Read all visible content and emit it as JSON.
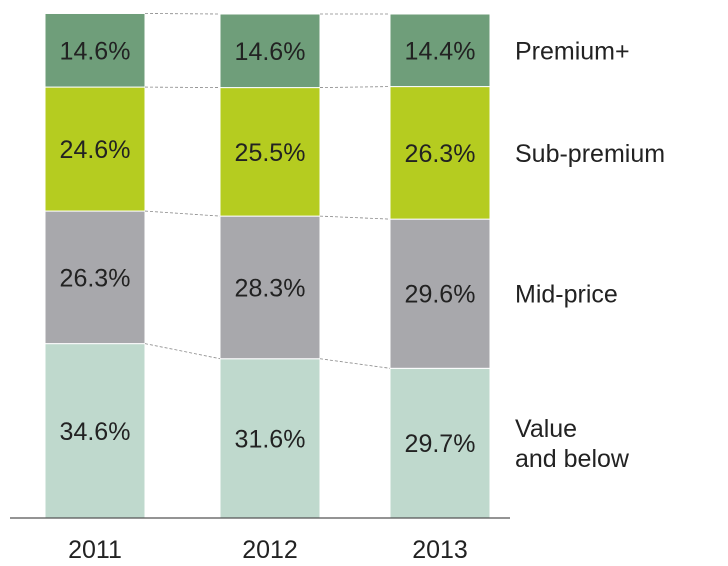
{
  "chart_data": {
    "type": "stacked_bar",
    "categories": [
      "2011",
      "2012",
      "2013"
    ],
    "ylim": [
      0,
      100
    ],
    "series": [
      {
        "name": "Value\nand below",
        "color": "#bfd9cd",
        "values": [
          34.6,
          31.6,
          29.7
        ],
        "value_labels": [
          "34.6%",
          "31.6%",
          "29.7%"
        ]
      },
      {
        "name": "Mid-price",
        "color": "#a8a8ac",
        "values": [
          26.3,
          28.3,
          29.6
        ],
        "value_labels": [
          "26.3%",
          "28.3%",
          "29.6%"
        ]
      },
      {
        "name": "Sub-premium",
        "color": "#b5cc20",
        "values": [
          24.6,
          25.5,
          26.3
        ],
        "value_labels": [
          "24.6%",
          "25.5%",
          "26.3%"
        ]
      },
      {
        "name": "Premium+",
        "color": "#6f9e7a",
        "values": [
          14.6,
          14.6,
          14.4
        ],
        "value_labels": [
          "14.6%",
          "14.6%",
          "14.4%"
        ]
      }
    ]
  }
}
